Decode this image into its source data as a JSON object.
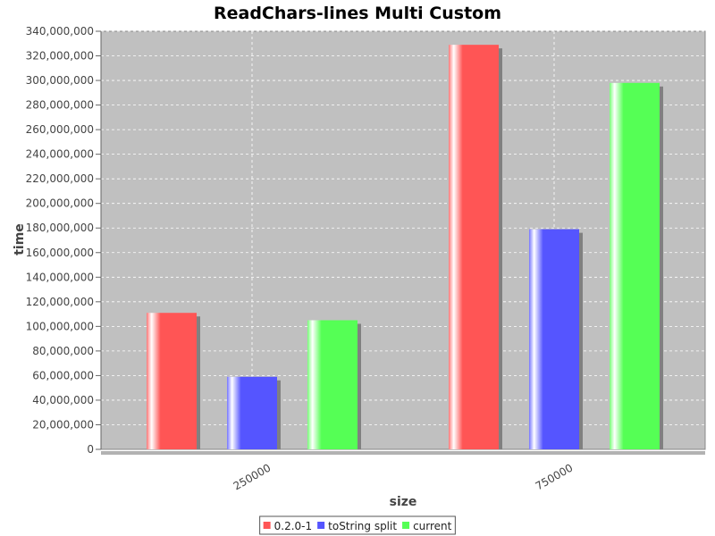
{
  "chart_data": {
    "type": "bar",
    "title": "ReadChars-lines Multi Custom",
    "xlabel": "size",
    "ylabel": "time",
    "categories": [
      "250000",
      "750000"
    ],
    "series": [
      {
        "name": "0.2.0-1",
        "color": "#ff5555",
        "values": [
          111000000,
          329000000
        ]
      },
      {
        "name": "toString split",
        "color": "#5555ff",
        "values": [
          59000000,
          179000000
        ]
      },
      {
        "name": "current",
        "color": "#55ff55",
        "values": [
          105000000,
          298000000
        ]
      }
    ],
    "ylim": [
      0,
      340000000
    ],
    "yticks": [
      0,
      20000000,
      40000000,
      60000000,
      80000000,
      100000000,
      120000000,
      140000000,
      160000000,
      180000000,
      200000000,
      220000000,
      240000000,
      260000000,
      280000000,
      300000000,
      320000000,
      340000000
    ],
    "ytick_labels": [
      "0",
      "20,000,000",
      "40,000,000",
      "60,000,000",
      "80,000,000",
      "100,000,000",
      "120,000,000",
      "140,000,000",
      "160,000,000",
      "180,000,000",
      "200,000,000",
      "220,000,000",
      "240,000,000",
      "260,000,000",
      "280,000,000",
      "300,000,000",
      "320,000,000",
      "340,000,000"
    ],
    "grid": true,
    "legend_position": "bottom-center",
    "plot_background": "#c0c0c0",
    "grid_color": "#ffffff"
  }
}
